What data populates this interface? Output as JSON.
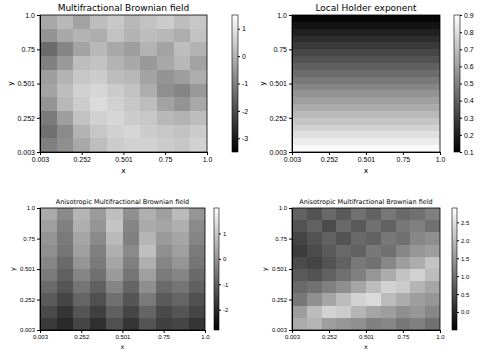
{
  "chart_data": [
    {
      "type": "heatmap",
      "title": "Multifractional Brownian field",
      "x_label": "x",
      "y_label": "y",
      "xlim": [
        0.003,
        1
      ],
      "ylim": [
        0.003,
        1
      ],
      "xticks": [
        0.003,
        0.252,
        0.501,
        0.75,
        {
          "value": 1,
          "label": "1.0"
        }
      ],
      "yticks": [
        0.003,
        0.252,
        0.501,
        0.75,
        {
          "value": 1,
          "label": "1.0"
        }
      ],
      "zlim": [
        -3.5,
        1.5
      ],
      "zticks": [
        -3,
        -2,
        -1,
        0,
        1
      ],
      "values": [
        [
          -0.2,
          0.1,
          -0.3,
          0.2,
          0.4,
          0.1,
          0.3,
          0.5,
          0.2,
          0.4
        ],
        [
          -0.6,
          -0.2,
          0.0,
          -0.1,
          0.3,
          0.0,
          0.2,
          0.1,
          -0.1,
          0.3
        ],
        [
          -1.4,
          -0.9,
          -0.3,
          0.1,
          -0.2,
          -0.4,
          0.0,
          -0.3,
          0.2,
          0.0
        ],
        [
          -1.0,
          -0.5,
          0.2,
          0.3,
          0.0,
          -0.2,
          -0.5,
          -0.2,
          0.1,
          -0.3
        ],
        [
          -0.4,
          0.0,
          0.4,
          0.5,
          0.2,
          0.1,
          -0.3,
          -0.6,
          -0.4,
          -0.1
        ],
        [
          -0.3,
          0.2,
          0.6,
          0.7,
          0.5,
          0.3,
          -0.1,
          -0.7,
          -0.9,
          -0.5
        ],
        [
          -0.6,
          0.1,
          0.5,
          0.8,
          0.6,
          0.4,
          0.2,
          -0.3,
          -0.6,
          -0.2
        ],
        [
          -1.1,
          -0.4,
          0.3,
          0.6,
          0.7,
          0.5,
          0.4,
          0.1,
          0.0,
          0.2
        ],
        [
          -1.3,
          -0.8,
          0.0,
          0.4,
          0.6,
          0.7,
          0.5,
          0.4,
          0.3,
          0.5
        ],
        [
          -1.0,
          -0.7,
          -0.2,
          0.2,
          0.5,
          0.6,
          0.6,
          0.5,
          0.4,
          0.6
        ]
      ]
    },
    {
      "type": "heatmap",
      "title": "Local Holder exponent",
      "x_label": "x",
      "y_label": "y",
      "xlim": [
        0.003,
        1
      ],
      "ylim": [
        0.003,
        1
      ],
      "xticks": [
        0.003,
        0.252,
        0.501,
        0.75,
        {
          "value": 1,
          "label": "1.0"
        }
      ],
      "yticks": [
        0.003,
        0.252,
        0.501,
        0.75,
        {
          "value": 1,
          "label": "1.0"
        }
      ],
      "zlim": [
        0.1,
        0.9
      ],
      "zticks": [
        0.1,
        0.2,
        0.3,
        0.4,
        0.5,
        0.6,
        0.7,
        0.8,
        0.9
      ],
      "values": [
        [
          0.12
        ],
        [
          0.16
        ],
        [
          0.2
        ],
        [
          0.24
        ],
        [
          0.28
        ],
        [
          0.32
        ],
        [
          0.36
        ],
        [
          0.4
        ],
        [
          0.44
        ],
        [
          0.48
        ],
        [
          0.52
        ],
        [
          0.56
        ],
        [
          0.6
        ],
        [
          0.64
        ],
        [
          0.68
        ],
        [
          0.72
        ],
        [
          0.76
        ],
        [
          0.8
        ],
        [
          0.84
        ],
        [
          0.88
        ]
      ]
    },
    {
      "type": "heatmap",
      "title": "Anisotropic Multifractional Brownian field",
      "x_label": "x",
      "y_label": "y",
      "xlim": [
        0.003,
        1
      ],
      "ylim": [
        0.003,
        1
      ],
      "xticks": [
        0.003,
        0.252,
        0.501,
        0.75,
        {
          "value": 1,
          "label": "1.0"
        }
      ],
      "yticks": [
        0.003,
        0.252,
        0.501,
        0.75,
        {
          "value": 1,
          "label": "1.0"
        }
      ],
      "zlim": [
        -2.8,
        2.0
      ],
      "zticks": [
        -2,
        -1,
        0,
        1
      ],
      "values": [
        [
          0.4,
          -0.2,
          0.6,
          0.1,
          0.8,
          -0.1,
          0.5,
          0.2,
          0.7,
          0.0
        ],
        [
          0.2,
          -0.4,
          0.5,
          0.0,
          0.9,
          -0.3,
          0.4,
          0.3,
          0.5,
          -0.2
        ],
        [
          0.0,
          -0.5,
          0.3,
          -0.2,
          0.7,
          -0.4,
          0.6,
          0.1,
          0.3,
          -0.3
        ],
        [
          -0.1,
          -0.6,
          0.2,
          -0.4,
          0.5,
          -0.2,
          0.8,
          -0.1,
          0.2,
          -0.5
        ],
        [
          -0.3,
          -0.8,
          0.0,
          -0.5,
          0.3,
          -0.4,
          0.5,
          -0.3,
          0.0,
          -0.6
        ],
        [
          -0.5,
          -1.0,
          -0.3,
          -0.7,
          0.1,
          -0.6,
          0.2,
          -0.5,
          -0.3,
          -0.8
        ],
        [
          -0.8,
          -1.2,
          -0.6,
          -1.0,
          -0.3,
          -0.9,
          -0.1,
          -0.8,
          -0.6,
          -1.0
        ],
        [
          -1.1,
          -1.5,
          -0.9,
          -1.3,
          -0.7,
          -1.2,
          -0.5,
          -1.1,
          -0.9,
          -1.3
        ],
        [
          -1.4,
          -1.8,
          -1.2,
          -1.6,
          -1.0,
          -1.5,
          -0.9,
          -1.4,
          -1.2,
          -1.5
        ],
        [
          -1.7,
          -2.0,
          -1.5,
          -1.9,
          -1.3,
          -1.8,
          -1.2,
          -1.6,
          -1.5,
          -1.8
        ]
      ]
    },
    {
      "type": "heatmap",
      "title": "Anisotropic Multifractional Brownian field",
      "x_label": "x",
      "y_label": "y",
      "xlim": [
        0.003,
        1
      ],
      "ylim": [
        0.003,
        1
      ],
      "xticks": [
        0.003,
        0.252,
        0.501,
        0.75,
        {
          "value": 1,
          "label": "1.0"
        }
      ],
      "yticks": [
        0.003,
        0.252,
        0.501,
        0.75,
        {
          "value": 1,
          "label": "1.0"
        }
      ],
      "zlim": [
        -0.5,
        2.9
      ],
      "zticks": [
        {
          "value": 0,
          "label": "0.0"
        },
        0.5,
        {
          "value": 1,
          "label": "1.0"
        },
        1.5,
        {
          "value": 2,
          "label": "2.0"
        },
        2.5
      ],
      "values": [
        [
          0.8,
          0.6,
          0.9,
          0.7,
          1.0,
          0.8,
          1.1,
          0.9,
          1.0,
          1.2
        ],
        [
          0.6,
          0.8,
          0.5,
          0.9,
          0.7,
          1.0,
          0.8,
          1.1,
          1.2,
          1.0
        ],
        [
          0.4,
          0.6,
          0.8,
          0.6,
          0.9,
          0.8,
          1.1,
          1.0,
          1.3,
          1.4
        ],
        [
          0.3,
          0.5,
          0.7,
          0.9,
          0.8,
          1.1,
          1.0,
          1.3,
          1.5,
          1.6
        ],
        [
          0.5,
          0.4,
          0.6,
          0.8,
          1.1,
          1.0,
          1.3,
          1.6,
          1.8,
          2.1
        ],
        [
          0.7,
          0.6,
          0.8,
          1.0,
          1.2,
          1.5,
          1.8,
          2.1,
          2.3,
          2.0
        ],
        [
          0.9,
          1.0,
          1.2,
          1.4,
          1.7,
          2.0,
          2.3,
          2.2,
          1.9,
          1.7
        ],
        [
          1.1,
          1.4,
          1.7,
          2.0,
          2.3,
          2.4,
          2.0,
          1.8,
          1.6,
          1.5
        ],
        [
          1.6,
          2.0,
          2.3,
          2.2,
          1.9,
          1.7,
          1.6,
          1.4,
          1.5,
          1.3
        ],
        [
          1.8,
          1.9,
          1.6,
          1.5,
          1.4,
          1.2,
          1.3,
          1.1,
          1.2,
          1.0
        ]
      ]
    }
  ]
}
